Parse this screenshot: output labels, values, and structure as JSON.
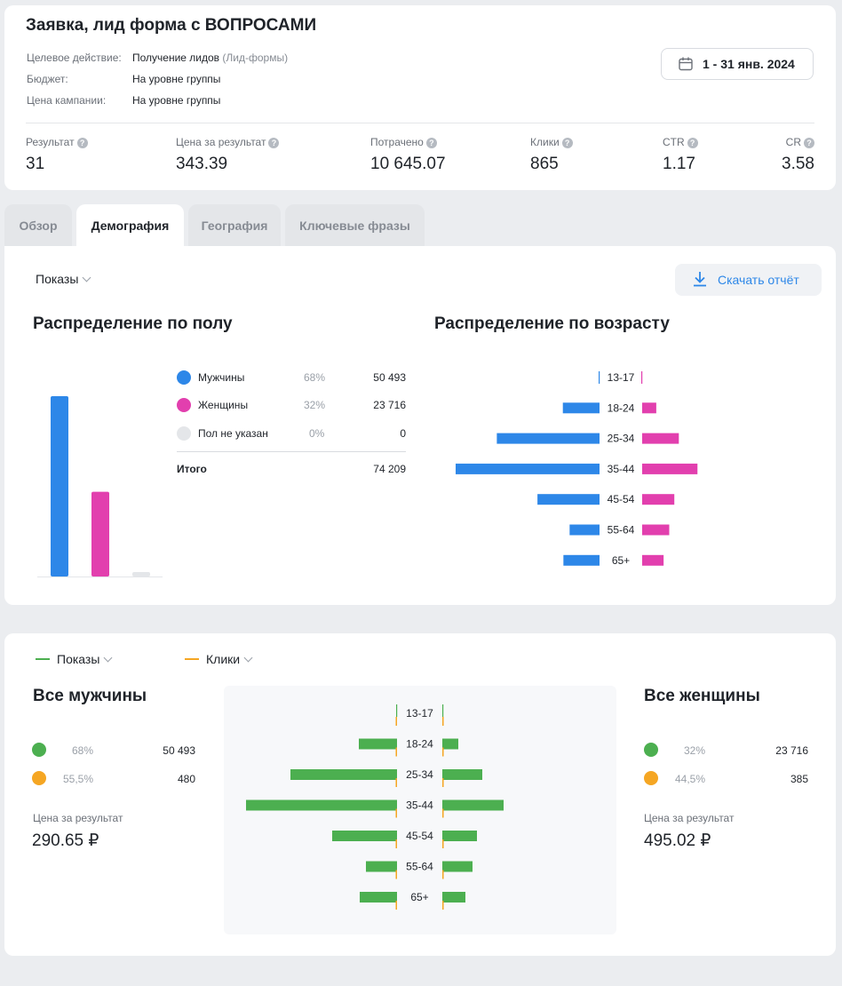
{
  "header": {
    "title": "Заявка, лид форма с ВОПРОСАМИ",
    "fields": [
      {
        "label": "Целевое действие:",
        "value": "Получение лидов",
        "value_extra": "(Лид-формы)"
      },
      {
        "label": "Бюджет:",
        "value": "На уровне группы"
      },
      {
        "label": "Цена кампании:",
        "value": "На уровне группы"
      }
    ],
    "date_range": "1 - 31 янв. 2024",
    "metrics": [
      {
        "label": "Результат",
        "value": "31"
      },
      {
        "label": "Цена за результат",
        "value": "343.39"
      },
      {
        "label": "Потрачено",
        "value": "10 645.07"
      },
      {
        "label": "Клики",
        "value": "865"
      },
      {
        "label": "CTR",
        "value": "1.17"
      },
      {
        "label": "CR",
        "value": "3.58"
      }
    ]
  },
  "tabs": [
    {
      "label": "Обзор",
      "active": false
    },
    {
      "label": "Демография",
      "active": true
    },
    {
      "label": "География",
      "active": false
    },
    {
      "label": "Ключевые фразы",
      "active": false
    }
  ],
  "demography": {
    "metric_select": "Показы",
    "download_label": "Скачать отчёт",
    "gender_title": "Распределение по полу",
    "age_title": "Распределение по возрасту",
    "gender_legend": [
      {
        "label": "Мужчины",
        "percent": "68%",
        "value": "50 493",
        "color": "#2d87e8"
      },
      {
        "label": "Женщины",
        "percent": "32%",
        "value": "23 716",
        "color": "#e23fae"
      },
      {
        "label": "Пол не указан",
        "percent": "0%",
        "value": "0",
        "color": "#e4e6e9"
      }
    ],
    "total_label": "Итого",
    "total_value": "74 209"
  },
  "compare": {
    "select1": "Показы",
    "select2": "Клики",
    "men_title": "Все мужчины",
    "women_title": "Все женщины",
    "men": {
      "imp_pct": "68%",
      "imp_val": "50 493",
      "clk_pct": "55,5%",
      "clk_val": "480",
      "cpr_label": "Цена за результат",
      "cpr": "290.65 ₽"
    },
    "women": {
      "imp_pct": "32%",
      "imp_val": "23 716",
      "clk_pct": "44,5%",
      "clk_val": "385",
      "cpr_label": "Цена за результат",
      "cpr": "495.02 ₽"
    }
  },
  "colors": {
    "male": "#2d87e8",
    "female": "#e23fae",
    "unknown": "#e4e6e9",
    "impressions": "#4caf50",
    "clicks": "#f5a623",
    "accent": "#2d87e8"
  },
  "chart_data": [
    {
      "type": "bar",
      "title": "Распределение по полу",
      "categories": [
        "Мужчины",
        "Женщины",
        "Пол не указан"
      ],
      "values": [
        50493,
        23716,
        0
      ]
    },
    {
      "type": "bar",
      "title": "Распределение по возрасту",
      "categories": [
        "13-17",
        "18-24",
        "25-34",
        "35-44",
        "45-54",
        "55-64",
        "65+"
      ],
      "series": [
        {
          "name": "Мужчины",
          "values": [
            200,
            6500,
            18200,
            25500,
            11000,
            5300,
            6400
          ]
        },
        {
          "name": "Женщины",
          "values": [
            100,
            2500,
            6500,
            9800,
            5700,
            4800,
            3800
          ]
        }
      ]
    },
    {
      "type": "bar",
      "categories": [
        "13-17",
        "18-24",
        "25-34",
        "35-44",
        "45-54",
        "55-64",
        "65+"
      ],
      "series": [
        {
          "name": "Показы (мужчины)",
          "values": [
            1,
            43,
            120,
            170,
            73,
            35,
            42
          ]
        },
        {
          "name": "Клики (мужчины)",
          "values": [
            1,
            1,
            1,
            1,
            1,
            1,
            1
          ]
        },
        {
          "name": "Показы (женщины)",
          "values": [
            1,
            18,
            45,
            69,
            39,
            34,
            26
          ]
        },
        {
          "name": "Клики (женщины)",
          "values": [
            1,
            1,
            1,
            1,
            1,
            1,
            1
          ]
        }
      ]
    }
  ]
}
